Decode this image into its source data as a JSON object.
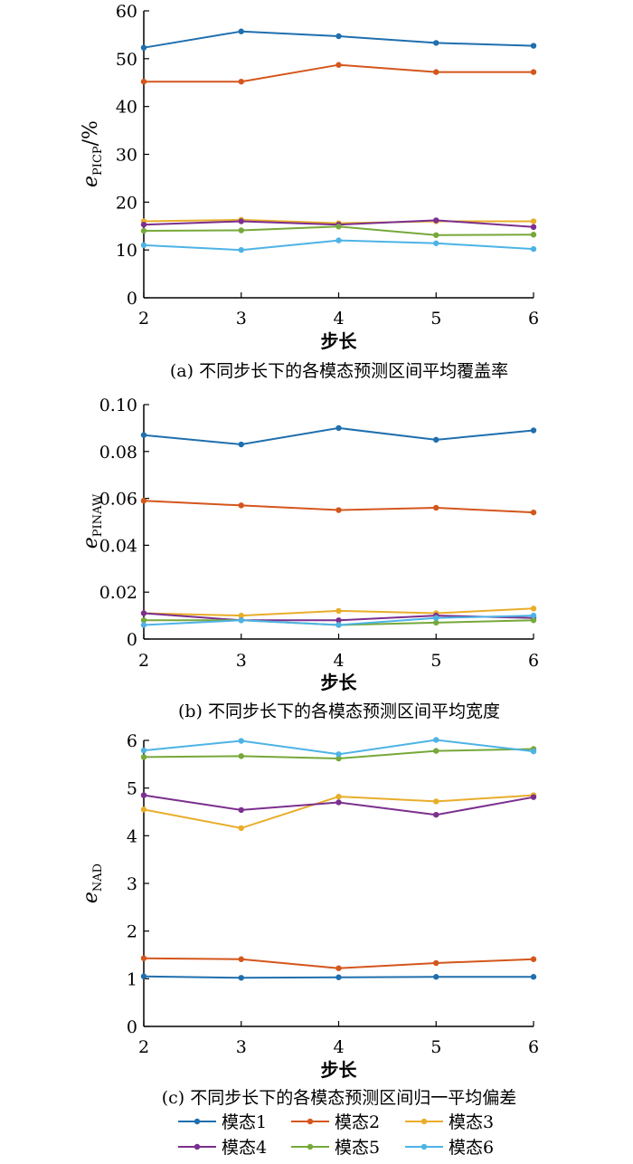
{
  "legend": [
    "模态1",
    "模态2",
    "模态3",
    "模态4",
    "模态5",
    "模态6"
  ],
  "colors": {
    "模态1": "#1f6fae",
    "模态2": "#d4561c",
    "模态3": "#e8ad2a",
    "模态4": "#7b2f8e",
    "模态5": "#76a83a",
    "模态6": "#4db3e6"
  },
  "chart_data": [
    {
      "type": "line",
      "caption": "(a)  不同步长下的各模态预测区间平均覆盖率",
      "xlabel": "步长",
      "ylabel_main": "e",
      "ylabel_sub": "PICP",
      "ylabel_suffix": "/%",
      "x": [
        2,
        3,
        4,
        5,
        6
      ],
      "xticks": [
        "2",
        "3",
        "4",
        "5",
        "6"
      ],
      "ylim": [
        0,
        60
      ],
      "yticks": [
        "0",
        "10",
        "20",
        "30",
        "40",
        "50",
        "60"
      ],
      "series": [
        {
          "name": "模态1",
          "values": [
            52.3,
            55.7,
            54.7,
            53.3,
            52.7
          ]
        },
        {
          "name": "模态2",
          "values": [
            45.2,
            45.2,
            48.7,
            47.2,
            47.2
          ]
        },
        {
          "name": "模态3",
          "values": [
            16.0,
            16.3,
            15.6,
            16.0,
            16.0
          ]
        },
        {
          "name": "模态4",
          "values": [
            15.3,
            16.0,
            15.3,
            16.2,
            14.8
          ]
        },
        {
          "name": "模态5",
          "values": [
            14.0,
            14.1,
            14.9,
            13.1,
            13.2
          ]
        },
        {
          "name": "模态6",
          "values": [
            11.0,
            10.0,
            12.0,
            11.4,
            10.2
          ]
        }
      ]
    },
    {
      "type": "line",
      "caption": "(b)  不同步长下的各模态预测区间平均宽度",
      "xlabel": "步长",
      "ylabel_main": "e",
      "ylabel_sub": "PINAW",
      "ylabel_suffix": "",
      "x": [
        2,
        3,
        4,
        5,
        6
      ],
      "xticks": [
        "2",
        "3",
        "4",
        "5",
        "6"
      ],
      "ylim": [
        0,
        0.1
      ],
      "yticks": [
        "0",
        "0.02",
        "0.04",
        "0.06",
        "0.08",
        "0.10"
      ],
      "series": [
        {
          "name": "模态1",
          "values": [
            0.087,
            0.083,
            0.09,
            0.085,
            0.089
          ]
        },
        {
          "name": "模态2",
          "values": [
            0.059,
            0.057,
            0.055,
            0.056,
            0.054
          ]
        },
        {
          "name": "模态3",
          "values": [
            0.011,
            0.01,
            0.012,
            0.011,
            0.013
          ]
        },
        {
          "name": "模态4",
          "values": [
            0.011,
            0.008,
            0.008,
            0.01,
            0.009
          ]
        },
        {
          "name": "模态5",
          "values": [
            0.008,
            0.008,
            0.006,
            0.007,
            0.008
          ]
        },
        {
          "name": "模态6",
          "values": [
            0.006,
            0.008,
            0.006,
            0.009,
            0.01
          ]
        }
      ]
    },
    {
      "type": "line",
      "caption": "(c)  不同步长下的各模态预测区间归一平均偏差",
      "xlabel": "步长",
      "ylabel_main": "e",
      "ylabel_sub": "NAD",
      "ylabel_suffix": "",
      "x": [
        2,
        3,
        4,
        5,
        6
      ],
      "xticks": [
        "2",
        "3",
        "4",
        "5",
        "6"
      ],
      "ylim": [
        0,
        6
      ],
      "yticks": [
        "0",
        "1",
        "2",
        "3",
        "4",
        "5",
        "6"
      ],
      "series": [
        {
          "name": "模态1",
          "values": [
            1.05,
            1.02,
            1.03,
            1.04,
            1.04
          ]
        },
        {
          "name": "模态2",
          "values": [
            1.43,
            1.41,
            1.22,
            1.33,
            1.41
          ]
        },
        {
          "name": "模态3",
          "values": [
            4.55,
            4.16,
            4.82,
            4.72,
            4.85
          ]
        },
        {
          "name": "模态4",
          "values": [
            4.85,
            4.54,
            4.7,
            4.44,
            4.81
          ]
        },
        {
          "name": "模态5",
          "values": [
            5.65,
            5.67,
            5.62,
            5.78,
            5.82
          ]
        },
        {
          "name": "模态6",
          "values": [
            5.79,
            5.99,
            5.71,
            6.01,
            5.77
          ]
        }
      ]
    }
  ]
}
